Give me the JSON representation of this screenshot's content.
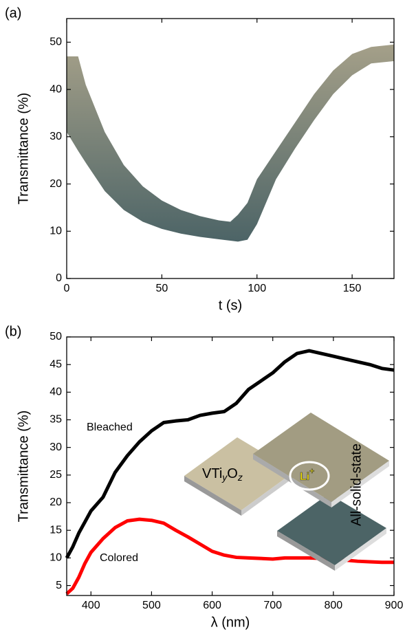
{
  "chart_data": [
    {
      "type": "area",
      "panel_label": "(a)",
      "x_label": "t (s)",
      "y_label": "Transmittance (%)",
      "x": [
        0,
        6,
        10,
        20,
        30,
        40,
        50,
        60,
        70,
        80,
        86,
        90,
        95,
        100,
        110,
        120,
        130,
        140,
        150,
        160,
        172
      ],
      "upper": [
        47,
        47,
        41,
        31,
        24,
        19.5,
        16.5,
        14.5,
        13.2,
        12.3,
        12,
        13.5,
        16,
        21,
        27,
        33,
        39,
        44,
        47.5,
        49,
        49.5
      ],
      "lower": [
        31,
        27,
        24.5,
        18.5,
        14.5,
        12,
        10.5,
        9.5,
        8.8,
        8.3,
        8,
        7.8,
        8.2,
        11.5,
        21,
        27.5,
        33.5,
        39,
        43,
        45.5,
        46
      ],
      "colors": [
        "#a5a089",
        "#4b6366"
      ],
      "xlim": [
        0,
        172
      ],
      "xticks": [
        0,
        50,
        100,
        150
      ],
      "ylim": [
        0,
        55
      ],
      "yticks": [
        0,
        10,
        20,
        30,
        40,
        50
      ]
    },
    {
      "type": "line",
      "panel_label": "(b)",
      "x_label": "λ (nm)",
      "y_label": "Transmittance (%)",
      "x": [
        360,
        370,
        380,
        390,
        400,
        420,
        440,
        460,
        480,
        500,
        520,
        540,
        560,
        580,
        600,
        620,
        640,
        660,
        680,
        700,
        720,
        740,
        760,
        780,
        800,
        820,
        840,
        860,
        880,
        900
      ],
      "series": [
        {
          "name": "Bleached",
          "color": "#000000",
          "values": [
            10,
            12,
            14.5,
            16.5,
            18.5,
            21,
            25.5,
            28.5,
            31,
            33,
            34.5,
            34.8,
            35,
            35.8,
            36.2,
            36.5,
            38,
            40.5,
            42,
            43.5,
            45.5,
            47,
            47.5,
            47,
            46.5,
            46,
            45.5,
            45,
            44.3,
            44
          ]
        },
        {
          "name": "Colored",
          "color": "#ff0000",
          "values": [
            3.5,
            4.5,
            6.5,
            9,
            11,
            13.5,
            15.5,
            16.7,
            17,
            16.8,
            16.3,
            15,
            13.8,
            12.5,
            11.2,
            10.5,
            10.1,
            10,
            9.9,
            9.8,
            10,
            10,
            10,
            9.9,
            9.7,
            9.6,
            9.4,
            9.3,
            9.2,
            9.2
          ]
        }
      ],
      "xlim": [
        360,
        900
      ],
      "xticks": [
        400,
        500,
        600,
        700,
        800,
        900
      ],
      "ylim": [
        3.2,
        50
      ],
      "yticks": [
        5,
        10,
        15,
        20,
        25,
        30,
        35,
        40,
        45,
        50
      ],
      "inset": {
        "material": [
          "VTi",
          "y",
          "O",
          "z"
        ],
        "ion": [
          "Li",
          "+"
        ],
        "label": "All-solid-state"
      }
    }
  ]
}
